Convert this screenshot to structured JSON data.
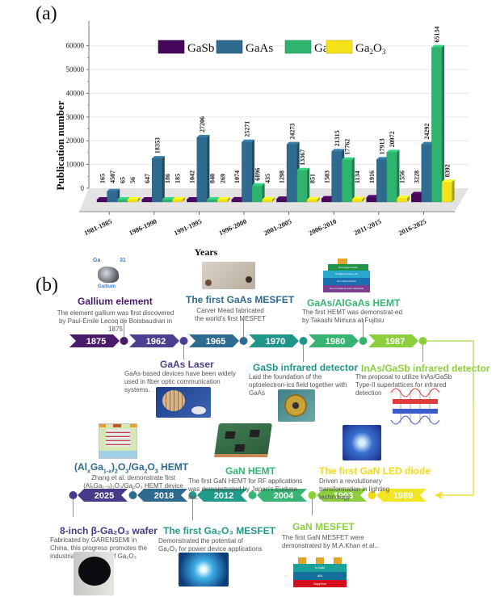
{
  "panel_a_label": "(a)",
  "panel_b_label": "(b)",
  "chart_data": {
    "type": "bar",
    "title": "",
    "xlabel": "Years",
    "ylabel": "Publication number",
    "ylim": [
      0,
      65000
    ],
    "yticks": [
      0,
      10000,
      20000,
      30000,
      40000,
      50000,
      60000
    ],
    "ytick_labels": [
      "0",
      "10000",
      "20000",
      "30000",
      "40000",
      "50000",
      "60000"
    ],
    "grid": true,
    "legend_position": "top",
    "categories": [
      "1981-1985",
      "1986-1990",
      "1991-1995",
      "1996-2000",
      "2001-2005",
      "2006-2010",
      "2011-2015",
      "2016-2025"
    ],
    "series": [
      {
        "name": "GaSb",
        "color": "#45085a",
        "values": [
          165,
          647,
          1042,
          1074,
          1298,
          1503,
          1916,
          3228
        ]
      },
      {
        "name": "GaAs",
        "color": "#2f6b8e",
        "values": [
          4507,
          18353,
          27206,
          25271,
          24273,
          21315,
          17913,
          24292
        ]
      },
      {
        "name": "GaN",
        "color": "#2eb46f",
        "values": [
          65,
          186,
          840,
          6896,
          13367,
          17762,
          20972,
          65134
        ]
      },
      {
        "name": "Ga2O3",
        "color": "#f5e11a",
        "values": [
          56,
          185,
          269,
          435,
          851,
          1134,
          1556,
          8392
        ]
      }
    ],
    "legend": [
      {
        "name": "GaSb",
        "label_main": "GaSb",
        "label_sub": "",
        "label_tail": ""
      },
      {
        "name": "GaAs",
        "label_main": "GaAs",
        "label_sub": "",
        "label_tail": ""
      },
      {
        "name": "GaN",
        "label_main": "GaN",
        "label_sub": "",
        "label_tail": ""
      },
      {
        "name": "Ga2O3",
        "label_main": "Ga",
        "label_sub": "2",
        "label_tail": "O",
        "label_sub2": "3"
      }
    ]
  },
  "timeline": {
    "top_row": [
      {
        "year": "1875",
        "color": "#4a1a6b"
      },
      {
        "year": "1962",
        "color": "#4b3f8f"
      },
      {
        "year": "1965",
        "color": "#2f6b8e"
      },
      {
        "year": "1970",
        "color": "#20968a"
      },
      {
        "year": "1980",
        "color": "#37b474"
      },
      {
        "year": "1987",
        "color": "#8ccf3e"
      }
    ],
    "bottom_row": [
      {
        "year": "2025",
        "color": "#473a8a"
      },
      {
        "year": "2018",
        "color": "#2e6a8e"
      },
      {
        "year": "2012",
        "color": "#229a8a"
      },
      {
        "year": "2004",
        "color": "#38b474"
      },
      {
        "year": "1993",
        "color": "#8ccf3e"
      },
      {
        "year": "1989",
        "color": "#f2e526"
      }
    ],
    "events": {
      "gallium": {
        "title": "Gallium element",
        "desc": "The element gallium was first discovered by Paul-Émile Lecoq de Boisbaudran in 1875",
        "img_ga": "Ga",
        "img_num": "31",
        "img_name": "Gallium",
        "color": "#4a1a6b"
      },
      "gaas_mesfet": {
        "title": "The first GaAs MESFET",
        "desc": "Carver Mead fabricated the world's first MESFET",
        "color": "#2f6b8e"
      },
      "hemt": {
        "title": "GaAs/AlGaAs HEMT",
        "desc": "The first HEMT was demonstrat-ed by Takashi Mimura at Fujitsu",
        "color": "#37b474",
        "layers": [
          "Non-Doped GaAs",
          "Si-Doped AlₓGa₁₋ₓAs",
          "Non-Doped GaAs",
          "Semi-Insulating GaAs Substrate"
        ]
      },
      "gaas_laser": {
        "title": "GaAs Laser",
        "desc": "GaAs-based devices have been widely used in fiber optic communication systems.",
        "color": "#4b3f8f"
      },
      "gasb_ir": {
        "title": "GaSb infrared detector",
        "desc": "Laid the foundation of the optoelectron-ics field together with GaAs",
        "color": "#20968a"
      },
      "inas_gasb": {
        "title": "InAs/GaSb infrared detector",
        "desc": "The proposal to utilize InAs/GaSb Type-II superlattices for infrared detection",
        "color": "#8ccf3e"
      },
      "algao_hemt": {
        "title_a": "(Al",
        "title_b": "x",
        "title_c": "Ga",
        "title_d": "1-x",
        "title_e": ")",
        "title_f": "2",
        "title_g": "O",
        "title_h": "3",
        "title_i": "/Ga",
        "title_j": "2",
        "title_k": "O",
        "title_l": "3",
        "title_m": " HEMT",
        "desc1": "Zhang et al. demonstrate first",
        "desc2": "(AlₓGa₁₋ₓ)₂O₃/Ga₂O₃ HEMT  device",
        "color": "#2f6b8e"
      },
      "gan_hemt": {
        "title": "GaN HEMT",
        "desc": "The first GaN HEMT for RF applications was demonstrated by Japan's Eudyna Inc.",
        "color": "#37b474"
      },
      "gan_led": {
        "title": "The first GaN LED diode",
        "desc": "Driven a revolutionary transformation in lighting technology",
        "color": "#f2d91a"
      },
      "wafer": {
        "title": "8-inch β-Ga₂O₃ wafer",
        "desc": "Fabricated by GARENSEMI in China, this progress promotes the industrial application of Ga₂O₃",
        "color": "#473a8a"
      },
      "ga2o3_mesfet": {
        "title": "The first Ga₂O₃ MESFET",
        "desc": "Demonstrated the potential of Ga₂O₃ for power device applications",
        "color": "#229a8a"
      },
      "gan_mesfet": {
        "title": "GaN MESFET",
        "desc": "The first GaN MESFET were demonstrated by M.A.Khan et al..",
        "color": "#8ccf3e",
        "layers": [
          "n-GaN",
          "AlN",
          "Sapphire"
        ]
      }
    }
  }
}
